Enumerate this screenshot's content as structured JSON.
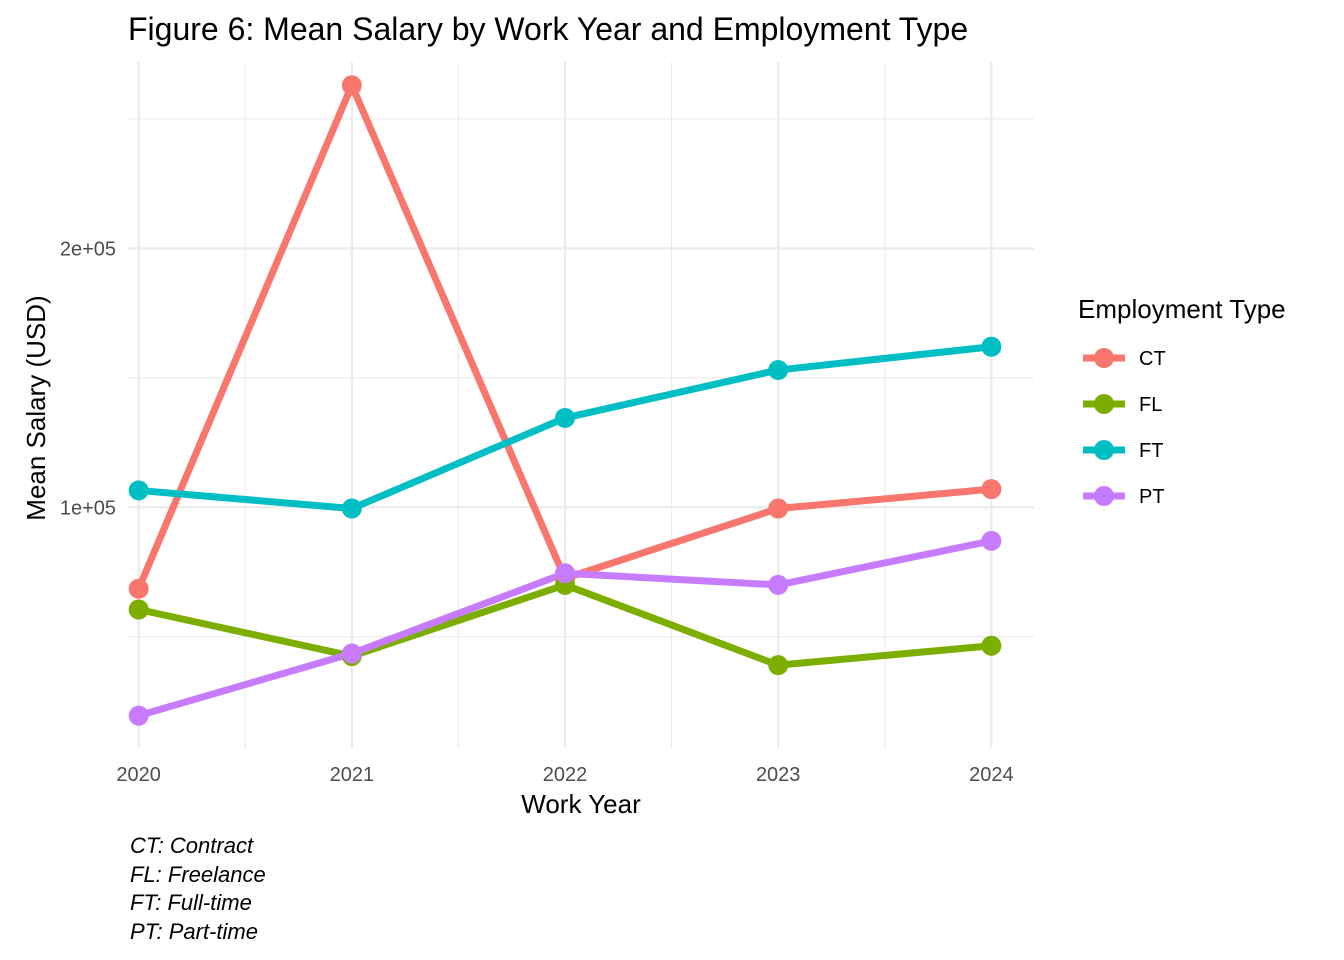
{
  "chart_data": {
    "type": "line",
    "title": "Figure 6: Mean Salary by Work Year and Employment Type",
    "xlabel": "Work Year",
    "ylabel": "Mean Salary (USD)",
    "x": [
      2020,
      2021,
      2022,
      2023,
      2024
    ],
    "x_tick_labels": [
      "2020",
      "2021",
      "2022",
      "2023",
      "2024"
    ],
    "y_ticks": [
      100000,
      200000
    ],
    "y_tick_labels": [
      "1e+05",
      "2e+05"
    ],
    "xlim": [
      2019.95,
      2024.2
    ],
    "ylim": [
      7000,
      272000
    ],
    "grid": true,
    "legend": {
      "title": "Employment Type",
      "position": "right"
    },
    "series": [
      {
        "name": "CT",
        "color": "#F8766D",
        "values": [
          68500,
          263000,
          72500,
          99500,
          107000
        ]
      },
      {
        "name": "FL",
        "color": "#7CAE00",
        "values": [
          60500,
          42500,
          70000,
          39000,
          46500
        ]
      },
      {
        "name": "FT",
        "color": "#00BFC4",
        "values": [
          106500,
          99500,
          134500,
          153000,
          162000
        ]
      },
      {
        "name": "PT",
        "color": "#C77CFF",
        "values": [
          19500,
          43500,
          74500,
          70000,
          87000
        ]
      }
    ],
    "caption": [
      "CT: Contract",
      "FL: Freelance",
      "FT: Full-time",
      "PT: Part-time"
    ]
  }
}
